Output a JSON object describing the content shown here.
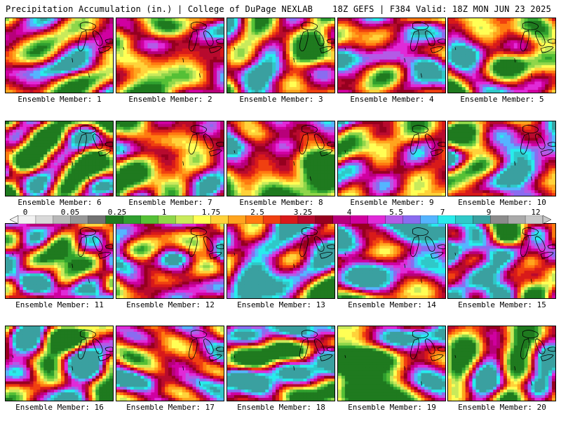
{
  "header": {
    "left_title": "Precipitation Accumulation (in.) | College of DuPage NEXLAB",
    "right_title": "18Z GEFS | F384 Valid: 18Z MON JUN 23 2025"
  },
  "colors": {
    "background": "#ffffff",
    "palette": [
      "#f2f2f2",
      "#d9d9d9",
      "#b8b8b8",
      "#979797",
      "#727272",
      "#1f7a1f",
      "#2f9f2f",
      "#55c036",
      "#8fd64a",
      "#c9ea5b",
      "#ffff55",
      "#ffd23a",
      "#ffa51e",
      "#ff7a10",
      "#f04010",
      "#d81a1a",
      "#b80a2e",
      "#96001f",
      "#b8007a",
      "#d000a0",
      "#e02ad8",
      "#b45ae6",
      "#8a6cf0",
      "#55b4ff",
      "#28ecec",
      "#30c8c8",
      "#3aa0a0",
      "#8c8c8c",
      "#aaaaaa",
      "#c8c8c8"
    ]
  },
  "colorbar": {
    "labels": [
      "0",
      "0.05",
      "0.25",
      "1",
      "1.75",
      "2.5",
      "3.25",
      "4",
      "5.5",
      "7",
      "9",
      "12"
    ],
    "units": "in."
  },
  "panels": [
    {
      "label": "Ensemble Member: 1",
      "mean": 13,
      "seed": 11
    },
    {
      "label": "Ensemble Member: 2",
      "mean": 15,
      "seed": 23
    },
    {
      "label": "Ensemble Member: 3",
      "mean": 13,
      "seed": 37
    },
    {
      "label": "Ensemble Member: 4",
      "mean": 16,
      "seed": 41
    },
    {
      "label": "Ensemble Member: 5",
      "mean": 13,
      "seed": 59
    },
    {
      "label": "Ensemble Member: 6",
      "mean": 11,
      "seed": 61
    },
    {
      "label": "Ensemble Member: 7",
      "mean": 14,
      "seed": 73
    },
    {
      "label": "Ensemble Member: 8",
      "mean": 12,
      "seed": 89
    },
    {
      "label": "Ensemble Member: 9",
      "mean": 14,
      "seed": 97
    },
    {
      "label": "Ensemble Member: 10",
      "mean": 16,
      "seed": 101
    },
    {
      "label": "Ensemble Member: 11",
      "mean": 15,
      "seed": 113
    },
    {
      "label": "Ensemble Member: 12",
      "mean": 15,
      "seed": 127
    },
    {
      "label": "Ensemble Member: 13",
      "mean": 15,
      "seed": 131
    },
    {
      "label": "Ensemble Member: 14",
      "mean": 15,
      "seed": 149
    },
    {
      "label": "Ensemble Member: 15",
      "mean": 16,
      "seed": 157
    },
    {
      "label": "Ensemble Member: 16",
      "mean": 15,
      "seed": 163
    },
    {
      "label": "Ensemble Member: 17",
      "mean": 15,
      "seed": 173
    },
    {
      "label": "Ensemble Member: 18",
      "mean": 17,
      "seed": 181
    },
    {
      "label": "Ensemble Member: 19",
      "mean": 12,
      "seed": 191
    },
    {
      "label": "Ensemble Member: 20",
      "mean": 13,
      "seed": 199
    }
  ]
}
